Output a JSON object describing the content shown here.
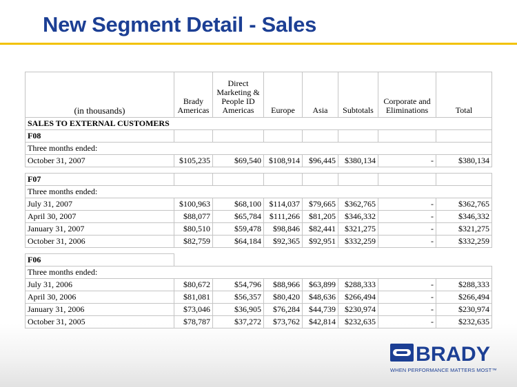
{
  "title": "New Segment Detail - Sales",
  "table": {
    "headers": [
      "(in thousands)",
      "Brady Americas",
      "Direct Marketing & People ID Americas",
      "Europe",
      "Asia",
      "Subtotals",
      "Corporate and Eliminations",
      "Total"
    ],
    "section_title": "SALES TO EXTERNAL CUSTOMERS",
    "three_months_label": "Three months ended:",
    "f08": {
      "label": "F08",
      "rows": [
        {
          "period": "October 31, 2007",
          "values": [
            "$105,235",
            "$69,540",
            "$108,914",
            "$96,445",
            "$380,134",
            "-",
            "$380,134"
          ]
        }
      ]
    },
    "f07": {
      "label": "F07",
      "rows": [
        {
          "period": "July 31, 2007",
          "values": [
            "$100,963",
            "$68,100",
            "$114,037",
            "$79,665",
            "$362,765",
            "-",
            "$362,765"
          ]
        },
        {
          "period": "April 30, 2007",
          "values": [
            "$88,077",
            "$65,784",
            "$111,266",
            "$81,205",
            "$346,332",
            "-",
            "$346,332"
          ]
        },
        {
          "period": "January 31, 2007",
          "values": [
            "$80,510",
            "$59,478",
            "$98,846",
            "$82,441",
            "$321,275",
            "-",
            "$321,275"
          ]
        },
        {
          "period": "October 31, 2006",
          "values": [
            "$82,759",
            "$64,184",
            "$92,365",
            "$92,951",
            "$332,259",
            "-",
            "$332,259"
          ]
        }
      ]
    },
    "f06": {
      "label": "F06",
      "rows": [
        {
          "period": "July 31, 2006",
          "values": [
            "$80,672",
            "$54,796",
            "$88,966",
            "$63,899",
            "$288,333",
            "-",
            "$288,333"
          ]
        },
        {
          "period": "April 30, 2006",
          "values": [
            "$81,081",
            "$56,357",
            "$80,420",
            "$48,636",
            "$266,494",
            "-",
            "$266,494"
          ]
        },
        {
          "period": "January 31, 2006",
          "values": [
            "$73,046",
            "$36,905",
            "$76,284",
            "$44,739",
            "$230,974",
            "-",
            "$230,974"
          ]
        },
        {
          "period": "October 31, 2005",
          "values": [
            "$78,787",
            "$37,272",
            "$73,762",
            "$42,814",
            "$232,635",
            "-",
            "$232,635"
          ]
        }
      ]
    }
  },
  "logo": {
    "name": "BRADY",
    "tagline": "WHEN PERFORMANCE MATTERS MOST™",
    "icon": "brady-logo-icon",
    "color": "#1c3f94"
  },
  "colors": {
    "title": "#1c3f94",
    "rule": "#f2c200"
  }
}
